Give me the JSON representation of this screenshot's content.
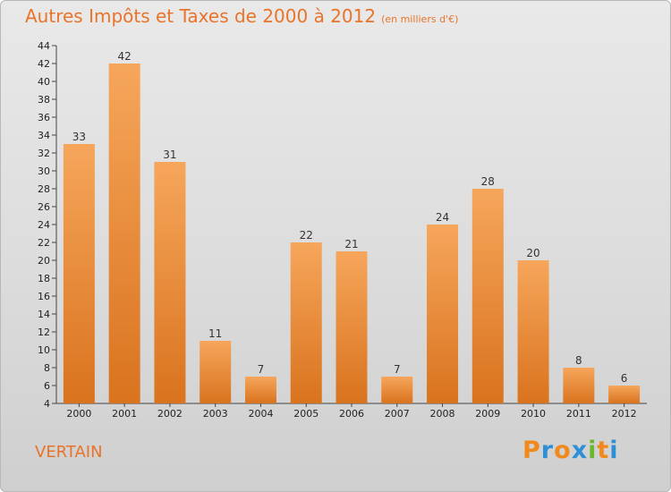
{
  "title": "Autres Impôts et Taxes de 2000 à 2012",
  "unit_note": "(en milliers d'€)",
  "commune": "VERTAIN",
  "logo": {
    "letters": [
      "P",
      "r",
      "o",
      "x",
      "i",
      "t",
      "i"
    ],
    "colors": [
      "#f08a1c",
      "#2d8fd6",
      "#f08a1c",
      "#2d8fd6",
      "#6bb82e",
      "#f08a1c",
      "#2d8fd6"
    ]
  },
  "colors": {
    "bar_light": "#f6a65b",
    "bar_dark": "#d9731e",
    "accent": "#e8742a"
  },
  "chart_data": {
    "type": "bar",
    "title": "Autres Impôts et Taxes de 2000 à 2012",
    "subtitle": "(en milliers d'€)",
    "categories": [
      "2000",
      "2001",
      "2002",
      "2003",
      "2004",
      "2005",
      "2006",
      "2007",
      "2008",
      "2009",
      "2010",
      "2011",
      "2012"
    ],
    "values": [
      33,
      42,
      31,
      11,
      7,
      22,
      21,
      7,
      24,
      28,
      20,
      8,
      6
    ],
    "ylim": [
      4,
      44
    ],
    "yticks": [
      4,
      6,
      8,
      10,
      12,
      14,
      16,
      18,
      20,
      22,
      24,
      26,
      28,
      30,
      32,
      34,
      36,
      38,
      40,
      42,
      44
    ],
    "grid": false,
    "legend": "none"
  }
}
